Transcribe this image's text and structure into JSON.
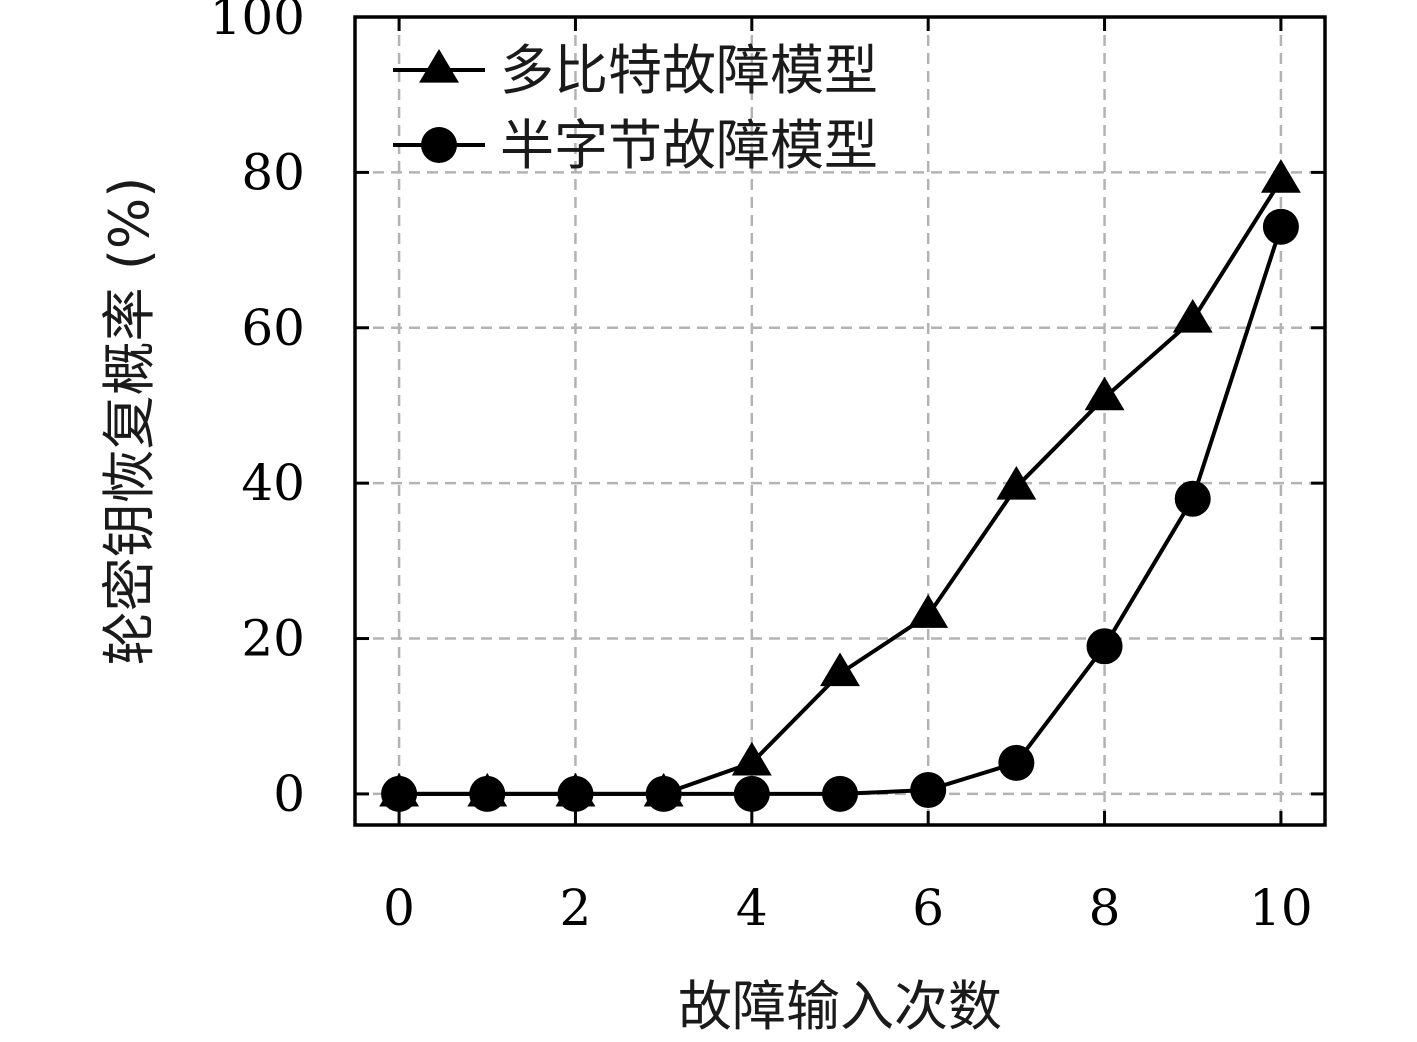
{
  "chart_data": {
    "type": "line",
    "xlabel": "故障输入次数",
    "ylabel": "轮密钥恢复概率 (%)",
    "xlim": [
      -0.5,
      10.5
    ],
    "ylim": [
      -4,
      100
    ],
    "xticks": [
      0,
      2,
      4,
      6,
      8,
      10
    ],
    "yticks": [
      0,
      20,
      40,
      60,
      80,
      100
    ],
    "grid": true,
    "legend_position": "top-left",
    "x": [
      0,
      1,
      2,
      3,
      4,
      5,
      6,
      7,
      8,
      9,
      10
    ],
    "series": [
      {
        "name": "多比特故障模型",
        "marker": "triangle",
        "color": "#000000",
        "values": [
          0,
          0,
          0,
          0,
          4,
          15.5,
          23,
          39.5,
          51,
          61,
          79
        ]
      },
      {
        "name": "半字节故障模型",
        "marker": "circle",
        "color": "#000000",
        "values": [
          0,
          0,
          0,
          0,
          0,
          0,
          0.5,
          4,
          19,
          38,
          73
        ]
      }
    ]
  }
}
